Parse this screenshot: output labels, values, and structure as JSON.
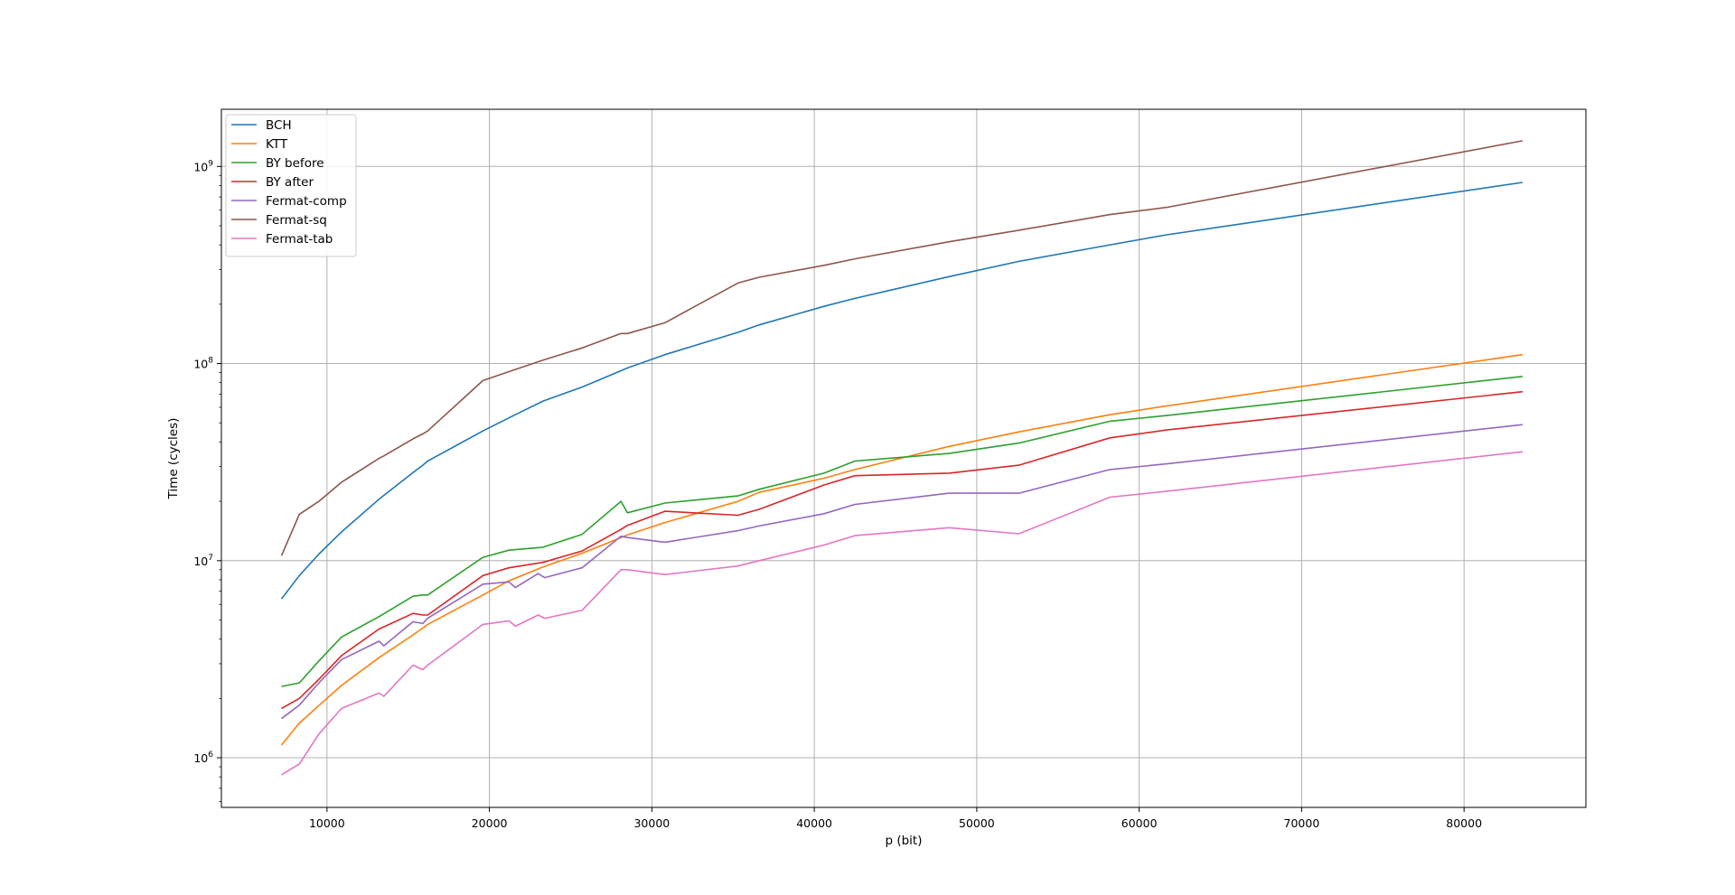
{
  "chart_data": {
    "type": "line",
    "title": "",
    "xlabel": "p (bit)",
    "ylabel": "Time (cycles)",
    "xlim": [
      3500,
      87500
    ],
    "ylim": [
      560000,
      1950000000
    ],
    "yscale": "log",
    "grid": true,
    "legend_position": "top-left",
    "x_ticks": [
      10000,
      20000,
      30000,
      40000,
      50000,
      60000,
      70000,
      80000
    ],
    "y_ticks": [
      {
        "value": 1000000,
        "base": "10",
        "exp": "6"
      },
      {
        "value": 10000000,
        "base": "10",
        "exp": "7"
      },
      {
        "value": 100000000,
        "base": "10",
        "exp": "8"
      },
      {
        "value": 1000000000,
        "base": "10",
        "exp": "9"
      }
    ],
    "series": [
      {
        "name": "BCH",
        "color": "#1f77b4",
        "points": [
          [
            7200,
            6400000
          ],
          [
            8300,
            8400000
          ],
          [
            9500,
            10800000
          ],
          [
            10900,
            14000000
          ],
          [
            13200,
            20500000
          ],
          [
            15300,
            28000000
          ],
          [
            15900,
            30500000
          ],
          [
            16200,
            32000000
          ],
          [
            19600,
            45500000
          ],
          [
            21200,
            53000000
          ],
          [
            23300,
            64500000
          ],
          [
            25700,
            76000000
          ],
          [
            28100,
            92000000
          ],
          [
            28500,
            95000000
          ],
          [
            30800,
            111000000
          ],
          [
            35300,
            144000000
          ],
          [
            36600,
            157000000
          ],
          [
            40600,
            195000000
          ],
          [
            42500,
            214000000
          ],
          [
            48300,
            276000000
          ],
          [
            52600,
            330000000
          ],
          [
            58200,
            400000000
          ],
          [
            61700,
            450000000
          ],
          [
            83600,
            830000000
          ]
        ]
      },
      {
        "name": "KTT",
        "color": "#ff7f0e",
        "points": [
          [
            7200,
            1160000
          ],
          [
            8300,
            1500000
          ],
          [
            9500,
            1840000
          ],
          [
            10900,
            2330000
          ],
          [
            13200,
            3220000
          ],
          [
            15300,
            4200000
          ],
          [
            15900,
            4550000
          ],
          [
            16200,
            4750000
          ],
          [
            19600,
            6700000
          ],
          [
            21200,
            7900000
          ],
          [
            23300,
            9300000
          ],
          [
            25700,
            10900000
          ],
          [
            28100,
            13100000
          ],
          [
            28500,
            13500000
          ],
          [
            30800,
            15600000
          ],
          [
            35300,
            20000000
          ],
          [
            36600,
            22200000
          ],
          [
            40600,
            26200000
          ],
          [
            42500,
            29000000
          ],
          [
            48300,
            38000000
          ],
          [
            52600,
            45000000
          ],
          [
            58200,
            55000000
          ],
          [
            61700,
            61000000
          ],
          [
            83600,
            111000000
          ]
        ]
      },
      {
        "name": "BY before",
        "color": "#2ca02c",
        "points": [
          [
            7200,
            2300000
          ],
          [
            8300,
            2400000
          ],
          [
            9500,
            3100000
          ],
          [
            10900,
            4100000
          ],
          [
            13200,
            5200000
          ],
          [
            15300,
            6600000
          ],
          [
            15900,
            6700000
          ],
          [
            16200,
            6700000
          ],
          [
            19600,
            10400000
          ],
          [
            21200,
            11300000
          ],
          [
            23300,
            11700000
          ],
          [
            25700,
            13600000
          ],
          [
            28100,
            20000000
          ],
          [
            28500,
            17500000
          ],
          [
            30800,
            19600000
          ],
          [
            35300,
            21300000
          ],
          [
            36600,
            23000000
          ],
          [
            40600,
            27800000
          ],
          [
            42500,
            32000000
          ],
          [
            48300,
            35000000
          ],
          [
            52600,
            39500000
          ],
          [
            58200,
            51000000
          ],
          [
            61700,
            54500000
          ],
          [
            83600,
            86000000
          ]
        ]
      },
      {
        "name": "BY after",
        "color": "#d62728",
        "points": [
          [
            7200,
            1780000
          ],
          [
            8300,
            2000000
          ],
          [
            9500,
            2500000
          ],
          [
            10900,
            3300000
          ],
          [
            13200,
            4500000
          ],
          [
            15300,
            5400000
          ],
          [
            15900,
            5300000
          ],
          [
            16200,
            5300000
          ],
          [
            19600,
            8400000
          ],
          [
            21200,
            9200000
          ],
          [
            23300,
            9800000
          ],
          [
            25700,
            11200000
          ],
          [
            28100,
            14400000
          ],
          [
            28500,
            15100000
          ],
          [
            30800,
            17800000
          ],
          [
            35300,
            17000000
          ],
          [
            36600,
            18200000
          ],
          [
            40600,
            24200000
          ],
          [
            42500,
            27000000
          ],
          [
            48300,
            27800000
          ],
          [
            52600,
            30500000
          ],
          [
            58200,
            42000000
          ],
          [
            61700,
            46000000
          ],
          [
            83600,
            72000000
          ]
        ]
      },
      {
        "name": "Fermat-comp",
        "color": "#9467bd",
        "points": [
          [
            7200,
            1580000
          ],
          [
            8300,
            1850000
          ],
          [
            9500,
            2400000
          ],
          [
            10900,
            3150000
          ],
          [
            13200,
            3900000
          ],
          [
            13500,
            3700000
          ],
          [
            15300,
            4900000
          ],
          [
            15900,
            4800000
          ],
          [
            16200,
            5100000
          ],
          [
            19600,
            7600000
          ],
          [
            21200,
            7800000
          ],
          [
            21600,
            7300000
          ],
          [
            23000,
            8600000
          ],
          [
            23400,
            8200000
          ],
          [
            25700,
            9200000
          ],
          [
            28100,
            13300000
          ],
          [
            28500,
            13100000
          ],
          [
            30800,
            12400000
          ],
          [
            35300,
            14200000
          ],
          [
            36600,
            15000000
          ],
          [
            40600,
            17300000
          ],
          [
            42500,
            19300000
          ],
          [
            48300,
            22000000
          ],
          [
            52600,
            22000000
          ],
          [
            58200,
            29000000
          ],
          [
            61700,
            31000000
          ],
          [
            83600,
            49000000
          ]
        ]
      },
      {
        "name": "Fermat-sq",
        "color": "#8c564b",
        "points": [
          [
            7200,
            10600000
          ],
          [
            8300,
            17200000
          ],
          [
            9500,
            20000000
          ],
          [
            10900,
            25000000
          ],
          [
            13200,
            33000000
          ],
          [
            13500,
            34000000
          ],
          [
            15300,
            41500000
          ],
          [
            15900,
            44000000
          ],
          [
            16200,
            45500000
          ],
          [
            19600,
            82000000
          ],
          [
            21200,
            91000000
          ],
          [
            23300,
            104000000
          ],
          [
            25700,
            120000000
          ],
          [
            28100,
            142000000
          ],
          [
            28500,
            142000000
          ],
          [
            30800,
            161000000
          ],
          [
            35300,
            256000000
          ],
          [
            36600,
            274000000
          ],
          [
            40600,
            315000000
          ],
          [
            42500,
            340000000
          ],
          [
            48300,
            415000000
          ],
          [
            52600,
            475000000
          ],
          [
            58200,
            570000000
          ],
          [
            61700,
            620000000
          ],
          [
            83600,
            1350000000
          ]
        ]
      },
      {
        "name": "Fermat-tab",
        "color": "#e377c2",
        "points": [
          [
            7200,
            820000
          ],
          [
            8300,
            930000
          ],
          [
            9500,
            1320000
          ],
          [
            10900,
            1780000
          ],
          [
            13200,
            2130000
          ],
          [
            13500,
            2050000
          ],
          [
            15300,
            2950000
          ],
          [
            15900,
            2800000
          ],
          [
            16200,
            2950000
          ],
          [
            19600,
            4750000
          ],
          [
            21200,
            4950000
          ],
          [
            21600,
            4650000
          ],
          [
            23000,
            5300000
          ],
          [
            23400,
            5100000
          ],
          [
            25700,
            5600000
          ],
          [
            28100,
            9000000
          ],
          [
            28500,
            9000000
          ],
          [
            30800,
            8500000
          ],
          [
            35300,
            9400000
          ],
          [
            36600,
            10000000
          ],
          [
            40600,
            12000000
          ],
          [
            42500,
            13400000
          ],
          [
            48300,
            14700000
          ],
          [
            52600,
            13700000
          ],
          [
            58200,
            21000000
          ],
          [
            61700,
            22500000
          ],
          [
            83600,
            35700000
          ]
        ]
      }
    ]
  }
}
